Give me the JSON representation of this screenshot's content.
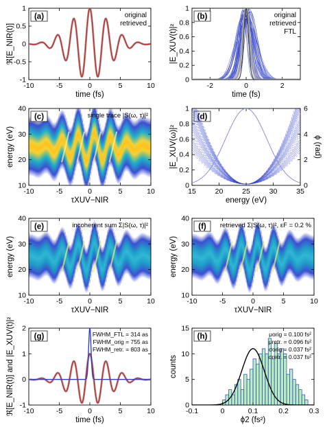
{
  "colors": {
    "orig": "#a6a6a6",
    "retr": "#d02020",
    "retrBlue": "#3040c8",
    "ftl": "#333333",
    "hist": "#b8f0b8",
    "histEdge": "#3b4fd1",
    "fit": "#000000"
  },
  "chart_data": [
    {
      "id": "a",
      "type": "line",
      "label": "(a)",
      "ylabel": "ℜ[E_NIR(t)]",
      "xlabel": "time (fs)",
      "xlim": [
        -10,
        10
      ],
      "ylim": [
        -1,
        1
      ],
      "xticks": [
        -10,
        -5,
        0,
        5,
        10
      ],
      "yticks": [
        -1,
        -0.5,
        0,
        0.5,
        1
      ],
      "legend": [
        "original",
        "retrieved"
      ],
      "legend_position": "top-right",
      "series": [
        {
          "name": "original",
          "func": "E_NIR",
          "params": {
            "sigma": 3.2,
            "omega": 2.36
          }
        },
        {
          "name": "retrieved",
          "func": "E_NIR",
          "params": {
            "sigma": 3.2,
            "omega": 2.36
          }
        }
      ]
    },
    {
      "id": "b",
      "type": "line",
      "label": "(b)",
      "ylabel": "|E_XUV(t)|²",
      "xlabel": "time (fs)",
      "xlim": [
        -3,
        3
      ],
      "ylim": [
        0,
        1
      ],
      "xticks": [
        -2,
        0,
        2
      ],
      "yticks": [
        0,
        0.2,
        0.4,
        0.6,
        0.8,
        1
      ],
      "legend": [
        "original",
        "retrieved",
        "FTL"
      ],
      "legend_position": "top-right",
      "series": [
        {
          "name": "original",
          "func": "gauss",
          "params": {
            "sigma": 0.2
          }
        },
        {
          "name": "retrieved",
          "func": "gauss_ensemble",
          "params": {
            "count": 30,
            "sigma_range": [
              0.18,
              0.55
            ]
          }
        },
        {
          "name": "FTL",
          "func": "gauss",
          "params": {
            "sigma": 0.135
          }
        }
      ]
    },
    {
      "id": "c",
      "type": "heatmap",
      "label": "(c)",
      "title": "single trace |S(ω, τ)|²",
      "ylabel": "energy (eV)",
      "xlabel": "τXUV−NIR",
      "xlim": [
        -10,
        10
      ],
      "ylim": [
        10,
        40
      ],
      "xticks": [
        -10,
        -5,
        0,
        5,
        10
      ],
      "yticks": [
        10,
        20,
        30,
        40
      ],
      "trace": {
        "center": 25,
        "width": 4.5,
        "streak": 5.5,
        "envelope": 4.2,
        "interference": true
      }
    },
    {
      "id": "d",
      "type": "line",
      "label": "(d)",
      "ylabel": "|E_XUV(ω)|²",
      "y2label": "ϕ (rad)",
      "xlabel": "energy (eV)",
      "xlim": [
        15,
        35
      ],
      "ylim": [
        0,
        1
      ],
      "y2lim": [
        0,
        6
      ],
      "xticks": [
        15,
        20,
        25,
        30,
        35
      ],
      "yticks": [
        0,
        0.2,
        0.4,
        0.6,
        0.8,
        1
      ],
      "y2ticks": [
        0,
        2,
        4,
        6
      ],
      "series": [
        {
          "name": "spectrum",
          "func": "gauss",
          "params": {
            "center": 25,
            "sigma": 3.8
          }
        },
        {
          "name": "phase",
          "func": "parabola_ensemble",
          "params": {
            "count": 25,
            "center": 25,
            "phi2_range": [
              0.05,
              0.15
            ]
          }
        }
      ]
    },
    {
      "id": "e",
      "type": "heatmap",
      "label": "(e)",
      "title": "incoherent sum Σ|S(ω, τ)|²",
      "ylabel": "energy (eV)",
      "xlabel": "τXUV−NIR",
      "xlim": [
        -10,
        10
      ],
      "ylim": [
        10,
        40
      ],
      "xticks": [
        -10,
        -5,
        0,
        5,
        10
      ],
      "yticks": [
        10,
        20,
        30,
        40
      ],
      "trace": {
        "center": 25,
        "width": 3.4,
        "streak": 5.5,
        "envelope": 4.2,
        "interference": false
      }
    },
    {
      "id": "f",
      "type": "heatmap",
      "label": "(f)",
      "title": "retrieved Σ|S(ω, τ)|², εF = 0.2 %",
      "ylabel": "energy (eV)",
      "xlabel": "τXUV−NIR",
      "xlim": [
        -10,
        10
      ],
      "ylim": [
        10,
        40
      ],
      "xticks": [
        -10,
        -5,
        0,
        5,
        10
      ],
      "yticks": [
        10,
        20,
        30,
        40
      ],
      "trace": {
        "center": 25,
        "width": 3.4,
        "streak": 5.5,
        "envelope": 4.2,
        "interference": false
      }
    },
    {
      "id": "g",
      "type": "line",
      "label": "(g)",
      "ylabel": "ℜ[E_NIR(t)] and |E_XUV(t)|²",
      "xlabel": "time (fs)",
      "xlim": [
        -10,
        10
      ],
      "ylim": [
        -1,
        2
      ],
      "xticks": [
        -10,
        -5,
        0,
        5,
        10
      ],
      "yticks": [
        -1,
        0,
        1,
        2
      ],
      "annotations": [
        "FWHM_FTL = 314 as",
        "FWHM_orig = 755 as",
        "FWHM_retr. = 803 as"
      ],
      "series": [
        {
          "name": "NIR original",
          "func": "E_NIR",
          "params": {
            "sigma": 3.2,
            "omega": 2.36
          }
        },
        {
          "name": "NIR retrieved",
          "func": "E_NIR",
          "params": {
            "sigma": 3.2,
            "omega": 2.36
          }
        },
        {
          "name": "XUV",
          "func": "gauss",
          "params": {
            "sigma": 0.2,
            "amp": 2
          }
        }
      ]
    },
    {
      "id": "h",
      "type": "bar",
      "label": "(h)",
      "ylabel": "counts",
      "xlabel": "ϕ2 (fs²)",
      "xlim": [
        -0.1,
        0.3
      ],
      "ylim": [
        0,
        15
      ],
      "xticks": [
        -0.1,
        0,
        0.1,
        0.2,
        0.3
      ],
      "yticks": [
        0,
        5,
        10,
        15
      ],
      "annotations": [
        "μorig = 0.100 fs²",
        "μretr. = 0.096 fs²",
        "σorig = 0.037 fs²",
        "σretr. = 0.037 fs²"
      ],
      "bin_width": 0.01,
      "bin_start": 0.0,
      "retrieved_counts": [
        1,
        2,
        3,
        2,
        4,
        5,
        3,
        6,
        5,
        7,
        9,
        8,
        10,
        11,
        10,
        13,
        9,
        12,
        10,
        11,
        10,
        6,
        7,
        5,
        4,
        3,
        2,
        1
      ],
      "original_fit": {
        "mu": 0.1,
        "sigma": 0.037,
        "peak": 11
      }
    }
  ]
}
